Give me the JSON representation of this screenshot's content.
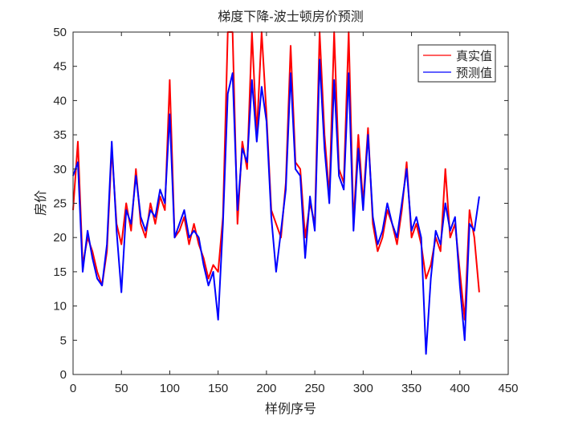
{
  "chart_data": {
    "type": "line",
    "title": "梯度下降-波士顿房价预测",
    "xlabel": "样例序号",
    "ylabel": "房价",
    "xlim": [
      0,
      450
    ],
    "ylim": [
      0,
      50
    ],
    "xticks": [
      0,
      50,
      100,
      150,
      200,
      250,
      300,
      350,
      400,
      450
    ],
    "yticks": [
      0,
      5,
      10,
      15,
      20,
      25,
      30,
      35,
      40,
      45,
      50
    ],
    "grid": false,
    "legend_position": "top-right",
    "x": [
      0,
      5,
      10,
      15,
      20,
      25,
      30,
      35,
      40,
      45,
      50,
      55,
      60,
      65,
      70,
      75,
      80,
      85,
      90,
      95,
      100,
      105,
      110,
      115,
      120,
      125,
      130,
      135,
      140,
      145,
      150,
      155,
      160,
      165,
      170,
      175,
      180,
      185,
      190,
      195,
      200,
      205,
      210,
      215,
      220,
      225,
      230,
      235,
      240,
      245,
      250,
      255,
      260,
      265,
      270,
      275,
      280,
      285,
      290,
      295,
      300,
      305,
      310,
      315,
      320,
      325,
      330,
      335,
      340,
      345,
      350,
      355,
      360,
      365,
      370,
      375,
      380,
      385,
      390,
      395,
      400,
      405,
      410,
      415,
      420
    ],
    "series": [
      {
        "name": "真实值",
        "color": "#ff0000",
        "values": [
          24,
          34,
          16,
          20,
          18,
          15,
          13,
          18,
          33,
          22,
          19,
          25,
          21,
          30,
          22,
          20,
          25,
          22,
          26,
          24,
          43,
          20,
          21,
          23,
          19,
          22,
          19,
          17,
          14,
          16,
          15,
          23,
          50,
          50,
          22,
          34,
          30,
          50,
          35,
          50,
          38,
          24,
          22,
          20,
          28,
          48,
          31,
          30,
          20,
          25,
          22,
          50,
          35,
          26,
          50,
          30,
          28,
          50,
          22,
          35,
          25,
          36,
          22,
          18,
          20,
          24,
          22,
          19,
          24,
          31,
          20,
          22,
          19,
          14,
          16,
          20,
          18,
          30,
          20,
          22,
          15,
          8,
          24,
          20,
          12
        ]
      },
      {
        "name": "预测值",
        "color": "#0000ff",
        "values": [
          29,
          31,
          15,
          21,
          17,
          14,
          13,
          19,
          34,
          21,
          12,
          24,
          22,
          29,
          23,
          21,
          24,
          23,
          27,
          25,
          38,
          20,
          22,
          24,
          20,
          21,
          20,
          16,
          13,
          15,
          8,
          22,
          41,
          44,
          24,
          33,
          31,
          43,
          34,
          42,
          37,
          23,
          15,
          21,
          27,
          44,
          30,
          29,
          17,
          26,
          21,
          46,
          33,
          25,
          43,
          29,
          27,
          44,
          21,
          33,
          24,
          35,
          23,
          19,
          21,
          25,
          22,
          20,
          25,
          30,
          21,
          23,
          20,
          3,
          14,
          21,
          19,
          25,
          21,
          23,
          13,
          5,
          22,
          21,
          26
        ]
      }
    ]
  }
}
